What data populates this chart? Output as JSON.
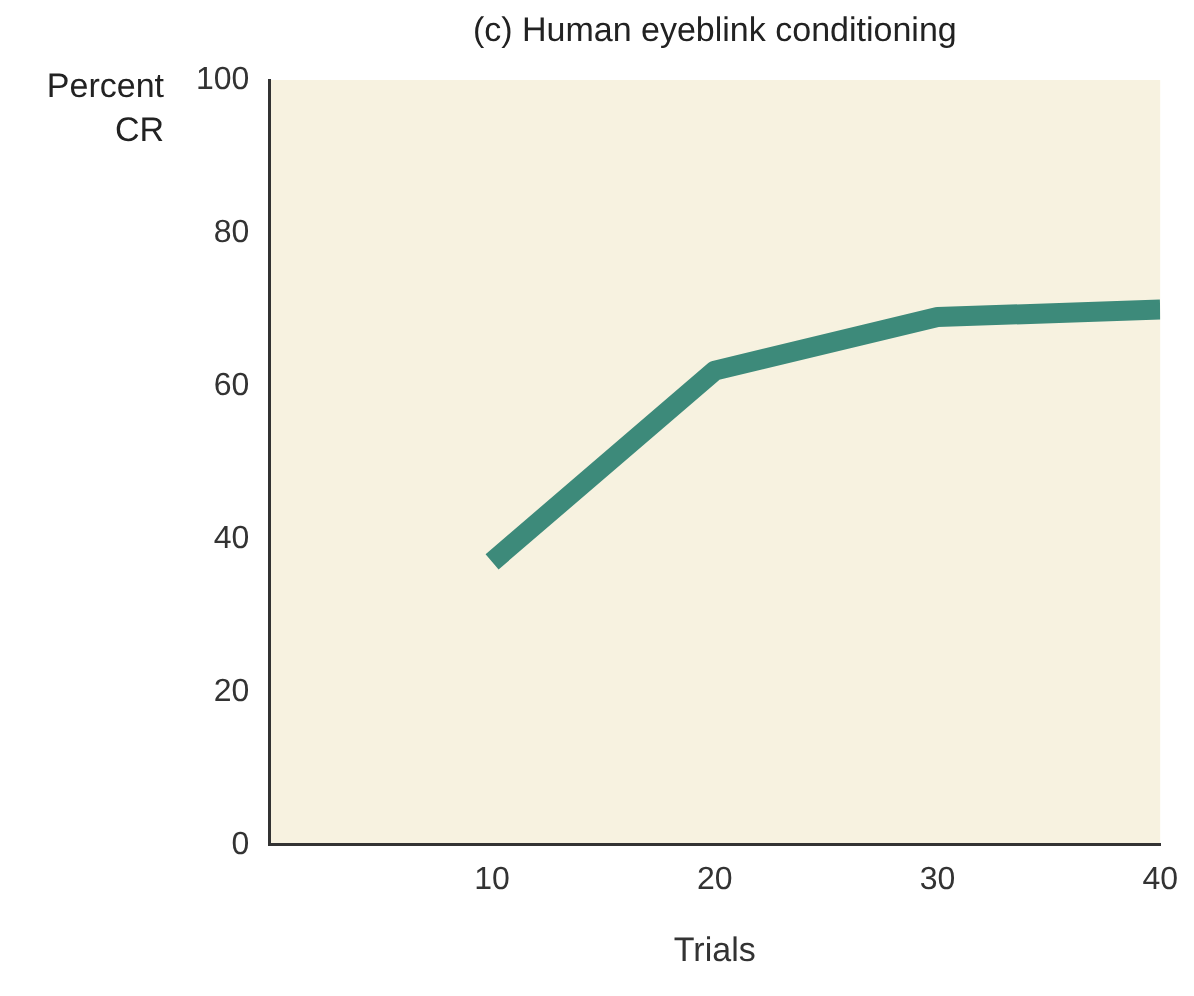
{
  "chart_data": {
    "type": "line",
    "title": "(c) Human eyeblink conditioning",
    "xlabel": "Trials",
    "ylabel": "Percent CR",
    "x": [
      10,
      20,
      30,
      40
    ],
    "series": [
      {
        "color": "#3d8a7a",
        "values": [
          37,
          62,
          69,
          70
        ]
      }
    ],
    "xlim": [
      0,
      40
    ],
    "xticks": [
      10,
      20,
      30,
      40
    ],
    "ylim": [
      0,
      100
    ],
    "yticks": [
      0,
      20,
      40,
      60,
      80,
      100
    ],
    "grid": false,
    "legend": false,
    "marker": "none",
    "line_style": "solid"
  }
}
